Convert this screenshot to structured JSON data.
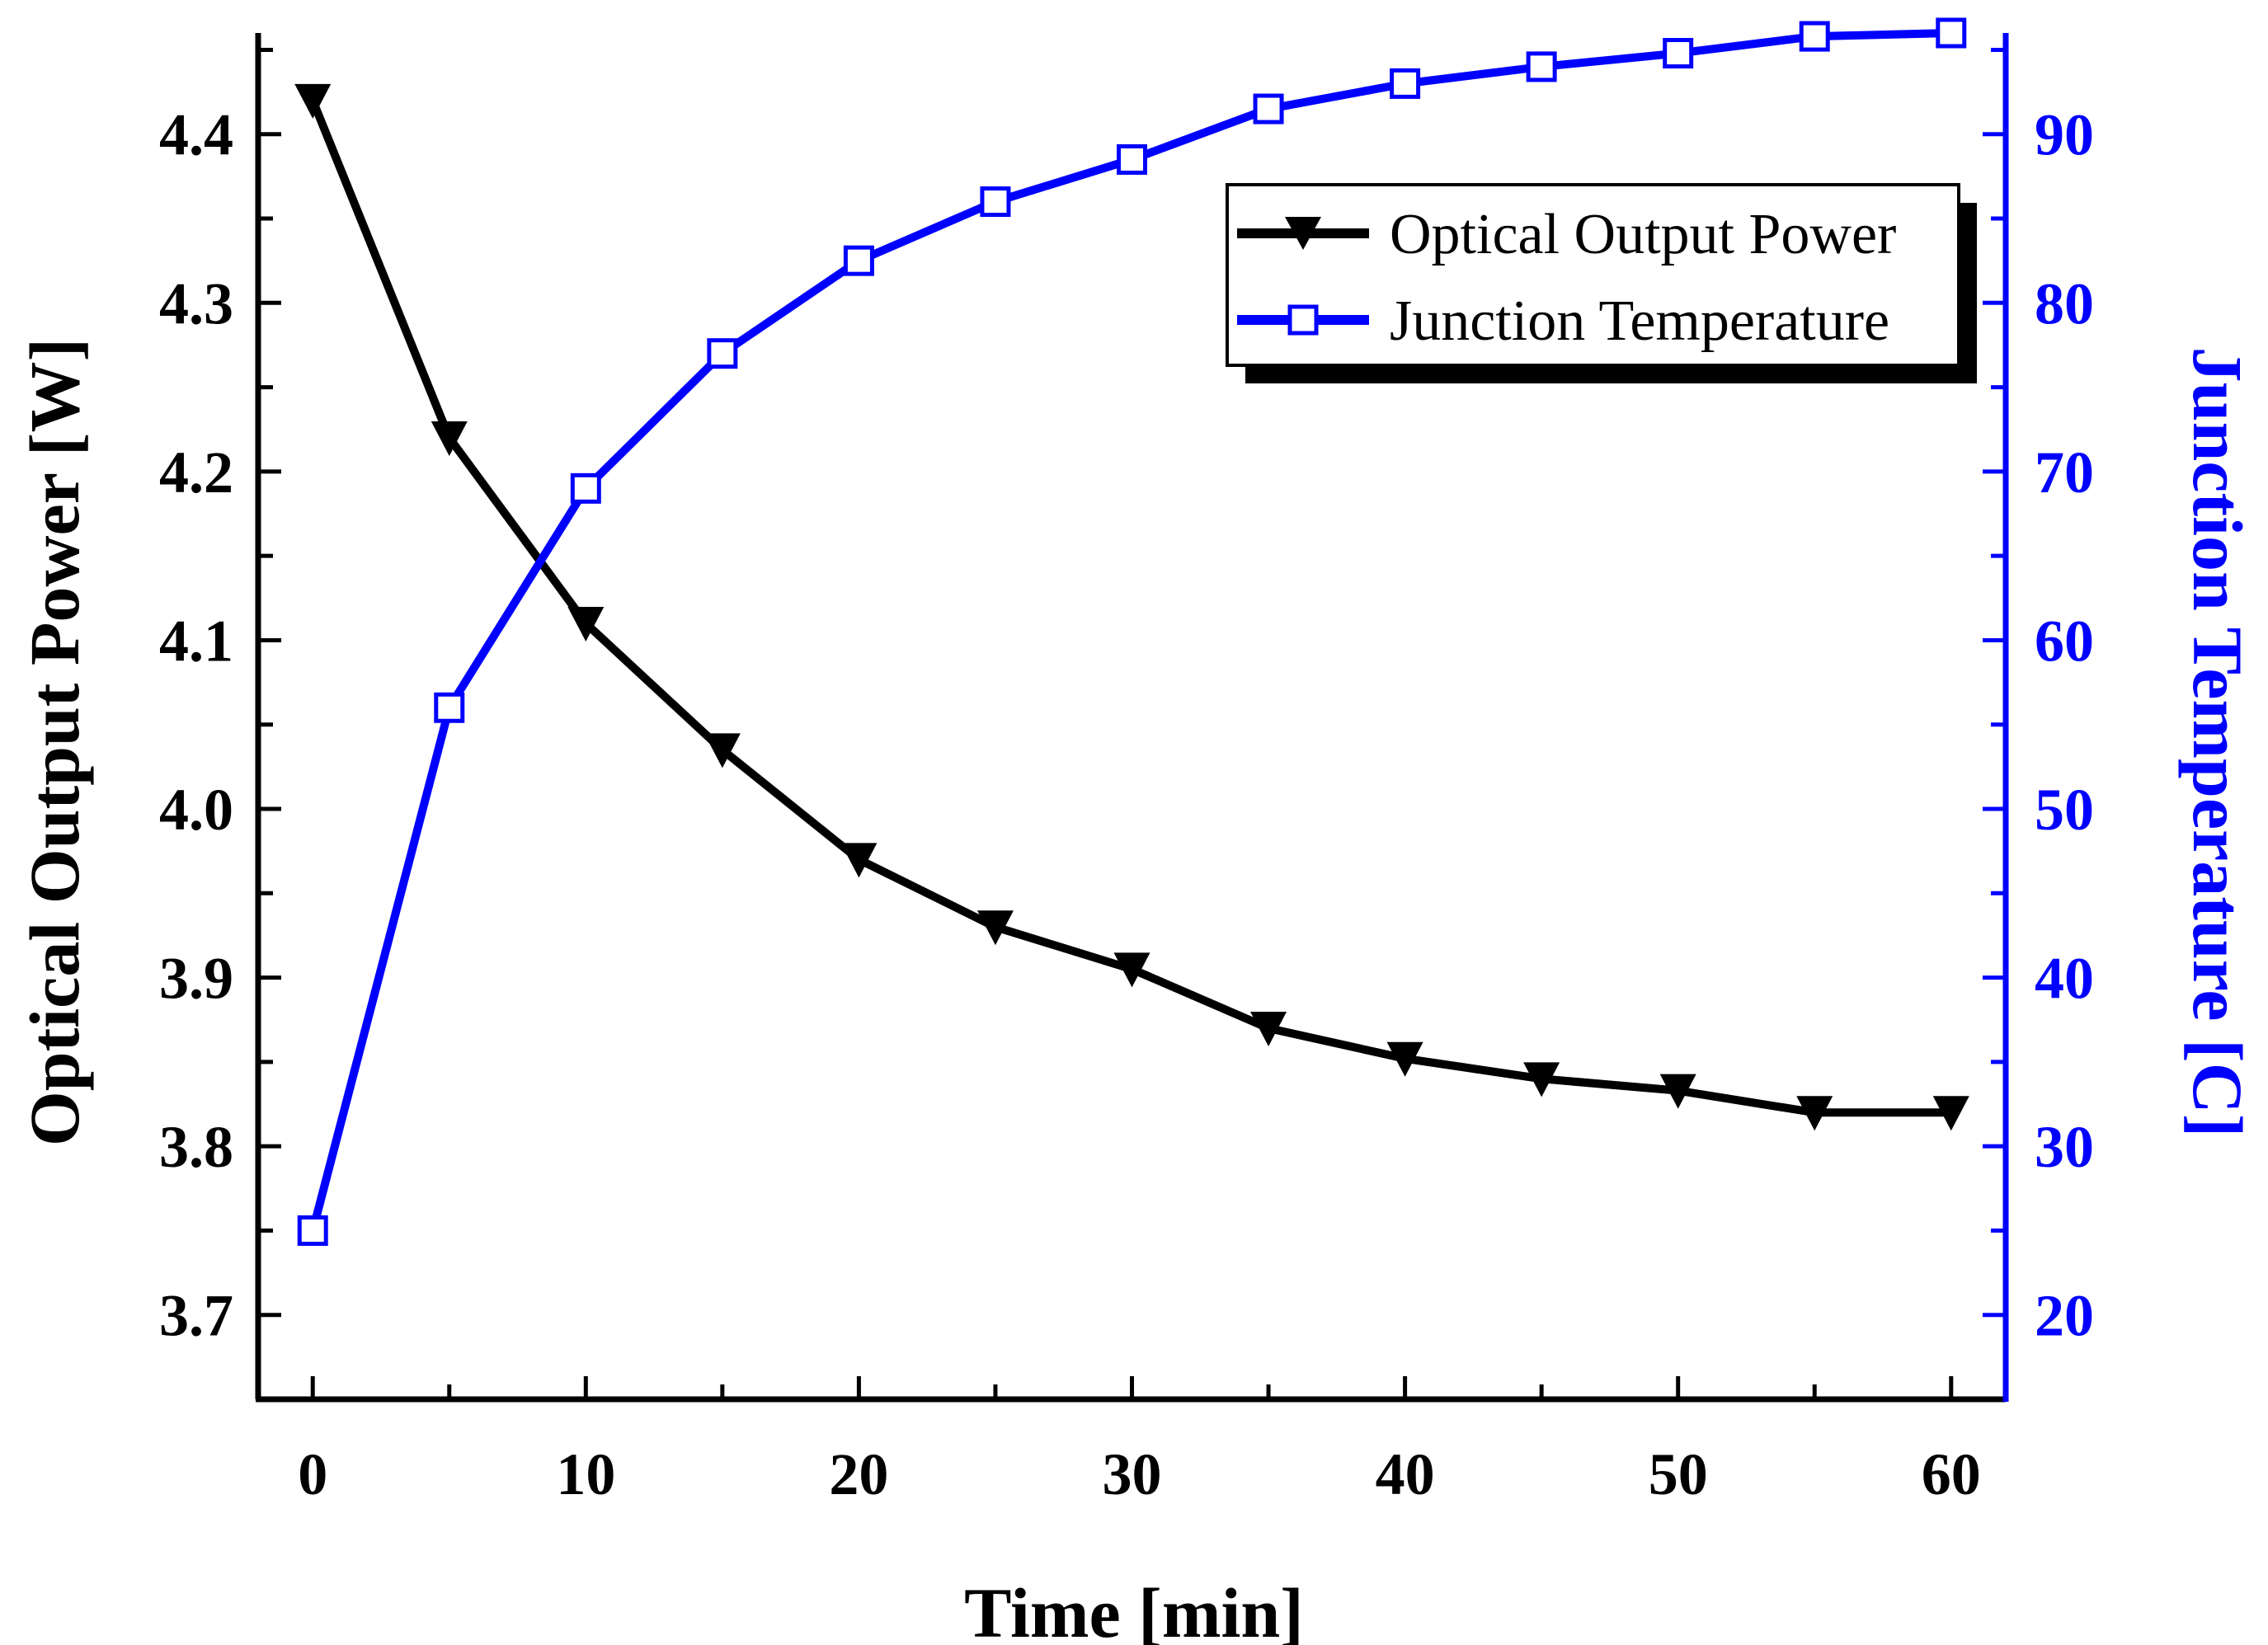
{
  "chart_data": {
    "type": "line",
    "x": [
      0,
      5,
      10,
      15,
      20,
      25,
      30,
      35,
      40,
      45,
      50,
      55,
      60
    ],
    "xlabel": "Time [min]",
    "xlim": [
      -2,
      62
    ],
    "xticks": [
      0,
      10,
      20,
      30,
      40,
      50,
      60
    ],
    "xtick_labels": [
      "0",
      "10",
      "20",
      "30",
      "40",
      "50",
      "60"
    ],
    "ylabel_left": "Optical Output Power [W]",
    "ylim_left": [
      3.65,
      4.46
    ],
    "yticks_left": [
      3.7,
      3.8,
      3.9,
      4.0,
      4.1,
      4.2,
      4.3,
      4.4
    ],
    "ytick_labels_left": [
      "3.7",
      "3.8",
      "3.9",
      "4.0",
      "4.1",
      "4.2",
      "4.3",
      "4.4"
    ],
    "ylabel_right": "Junction Temperature [C]",
    "ylim_right": [
      15,
      96
    ],
    "yticks_right": [
      20,
      30,
      40,
      50,
      60,
      70,
      80,
      90
    ],
    "ytick_labels_right": [
      "20",
      "30",
      "40",
      "50",
      "60",
      "70",
      "80",
      "90"
    ],
    "series": [
      {
        "name": "Optical Output Power",
        "axis": "left",
        "marker": "down-triangle-filled",
        "color": "#000000",
        "values": [
          4.42,
          4.22,
          4.11,
          4.035,
          3.97,
          3.93,
          3.905,
          3.87,
          3.852,
          3.84,
          3.833,
          3.82,
          3.82
        ]
      },
      {
        "name": "Junction Temperature",
        "axis": "right",
        "marker": "open-square",
        "color": "#0000ff",
        "values": [
          25,
          56,
          69,
          77,
          82.5,
          86,
          88.5,
          91.5,
          93,
          94,
          94.8,
          95.8,
          96
        ]
      }
    ],
    "legend": {
      "position": "top-right",
      "entries": [
        "Optical Output Power",
        "Junction Temperature"
      ]
    }
  }
}
